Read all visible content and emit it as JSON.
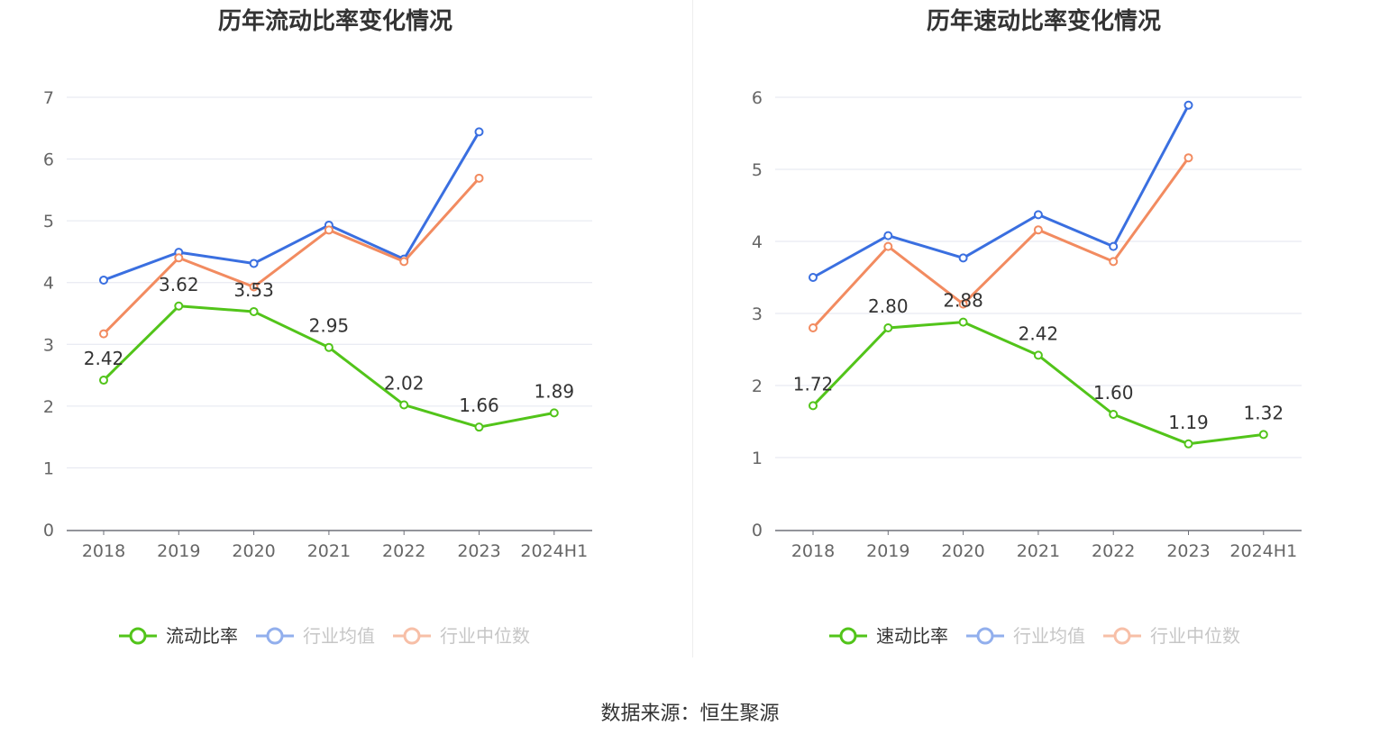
{
  "chart_data": [
    {
      "type": "line",
      "title": "历年流动比率变化情况",
      "categories": [
        "2018",
        "2019",
        "2020",
        "2021",
        "2022",
        "2023",
        "2024H1"
      ],
      "ylim": [
        0,
        7
      ],
      "yticks": [
        "0",
        "1",
        "2",
        "3",
        "4",
        "5",
        "6",
        "7"
      ],
      "series": [
        {
          "name": "流动比率",
          "color": "#52c41a",
          "values": [
            2.42,
            3.62,
            3.53,
            2.95,
            2.02,
            1.66,
            1.89
          ],
          "labels": [
            "2.42",
            "3.62",
            "3.53",
            "2.95",
            "2.02",
            "1.66",
            "1.89"
          ]
        },
        {
          "name": "行业均值",
          "color": "#3a6fe0",
          "values": [
            4.04,
            4.49,
            4.31,
            4.93,
            4.38,
            6.44,
            null
          ]
        },
        {
          "name": "行业中位数",
          "color": "#f28b60",
          "values": [
            3.17,
            4.4,
            3.93,
            4.85,
            4.34,
            5.69,
            null
          ]
        }
      ]
    },
    {
      "type": "line",
      "title": "历年速动比率变化情况",
      "categories": [
        "2018",
        "2019",
        "2020",
        "2021",
        "2022",
        "2023",
        "2024H1"
      ],
      "ylim": [
        0,
        6
      ],
      "yticks": [
        "0",
        "1",
        "2",
        "3",
        "4",
        "5",
        "6"
      ],
      "series": [
        {
          "name": "速动比率",
          "color": "#52c41a",
          "values": [
            1.72,
            2.8,
            2.88,
            2.42,
            1.6,
            1.19,
            1.32
          ],
          "labels": [
            "1.72",
            "2.80",
            "2.88",
            "2.42",
            "1.60",
            "1.19",
            "1.32"
          ]
        },
        {
          "name": "行业均值",
          "color": "#3a6fe0",
          "values": [
            3.5,
            4.08,
            3.77,
            4.37,
            3.93,
            5.89,
            null
          ]
        },
        {
          "name": "行业中位数",
          "color": "#f28b60",
          "values": [
            2.8,
            3.93,
            3.13,
            4.16,
            3.72,
            5.16,
            null
          ]
        }
      ]
    }
  ],
  "source": "数据来源：恒生聚源"
}
